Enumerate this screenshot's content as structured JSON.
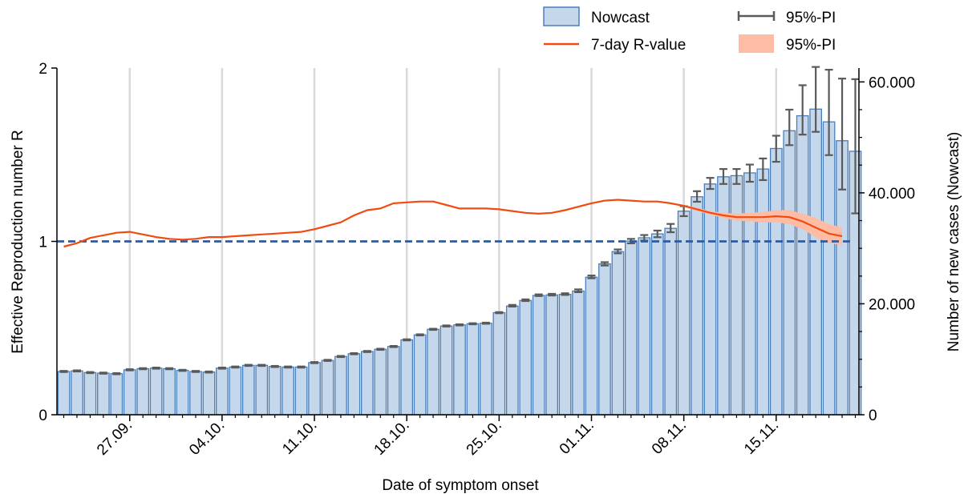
{
  "chart_data": {
    "type": "bar",
    "xlabel": "Date of symptom onset",
    "ylabel_left": "Effective Reproduction number R",
    "ylabel_right": "Number of new cases (Nowcast)",
    "ylim_left": [
      0,
      2
    ],
    "ylim_right": [
      0,
      62500
    ],
    "left_ticks": [
      "0",
      "1",
      "2"
    ],
    "left_tick_values": [
      0,
      1,
      2
    ],
    "right_ticks": [
      "0",
      "20.000",
      "40.000",
      "60.000"
    ],
    "right_tick_values": [
      0,
      20000,
      40000,
      60000
    ],
    "x_tick_labels": [
      "27.09.",
      "04.10.",
      "11.10.",
      "18.10.",
      "25.10.",
      "01.11.",
      "08.11.",
      "15.11."
    ],
    "x_tick_days": [
      5,
      12,
      19,
      26,
      33,
      40,
      47,
      54
    ],
    "days": [
      "22.09.",
      "23.09.",
      "24.09.",
      "25.09.",
      "26.09.",
      "27.09.",
      "28.09.",
      "29.09.",
      "30.09.",
      "01.10.",
      "02.10.",
      "03.10.",
      "04.10.",
      "05.10.",
      "06.10.",
      "07.10.",
      "08.10.",
      "09.10.",
      "10.10.",
      "11.10.",
      "12.10.",
      "13.10.",
      "14.10.",
      "15.10.",
      "16.10.",
      "17.10.",
      "18.10.",
      "19.10.",
      "20.10.",
      "21.10.",
      "22.10.",
      "23.10.",
      "24.10.",
      "25.10.",
      "26.10.",
      "27.10.",
      "28.10.",
      "29.10.",
      "30.10.",
      "31.10.",
      "01.11.",
      "02.11.",
      "03.11.",
      "04.11.",
      "05.11.",
      "06.11.",
      "07.11.",
      "08.11.",
      "09.11.",
      "10.11.",
      "11.11.",
      "12.11.",
      "13.11.",
      "14.11.",
      "15.11.",
      "16.11.",
      "17.11.",
      "18.11.",
      "19.11.",
      "20.11.",
      "21.11."
    ],
    "nowcast": [
      7800,
      7900,
      7600,
      7500,
      7400,
      8100,
      8300,
      8400,
      8300,
      8000,
      7800,
      7700,
      8400,
      8600,
      8900,
      8900,
      8700,
      8600,
      8600,
      9400,
      9800,
      10500,
      11000,
      11400,
      11800,
      12300,
      13500,
      14400,
      15400,
      16000,
      16200,
      16400,
      16500,
      18400,
      19600,
      20600,
      21500,
      21600,
      21700,
      22300,
      24800,
      27200,
      29400,
      31300,
      31900,
      32600,
      33600,
      36700,
      39300,
      41600,
      42900,
      43100,
      43600,
      44300,
      48000,
      51200,
      53900,
      55100,
      52800,
      49400,
      47500
    ],
    "nowcast_pi_low": [
      7700,
      7800,
      7500,
      7400,
      7300,
      8000,
      8200,
      8300,
      8200,
      7900,
      7700,
      7600,
      8300,
      8500,
      8800,
      8800,
      8600,
      8500,
      8500,
      9300,
      9700,
      10400,
      10900,
      11300,
      11700,
      12200,
      13400,
      14300,
      15300,
      15900,
      16100,
      16300,
      16400,
      18300,
      19500,
      20500,
      21400,
      21500,
      21600,
      22100,
      24600,
      26900,
      29100,
      30900,
      31400,
      32000,
      32900,
      35800,
      38400,
      40700,
      41600,
      41600,
      42000,
      42300,
      45600,
      48600,
      50500,
      51000,
      46800,
      40600,
      36300
    ],
    "nowcast_pi_high": [
      7900,
      8000,
      7700,
      7600,
      7500,
      8200,
      8400,
      8500,
      8400,
      8100,
      7900,
      7800,
      8500,
      8700,
      9000,
      9000,
      8800,
      8700,
      8700,
      9500,
      9900,
      10600,
      11100,
      11500,
      11900,
      12400,
      13600,
      14500,
      15500,
      16100,
      16300,
      16500,
      16600,
      18500,
      19800,
      20800,
      21700,
      21800,
      21900,
      22600,
      25100,
      27500,
      29800,
      31700,
      32400,
      33200,
      34400,
      37600,
      40300,
      42700,
      44300,
      44300,
      45100,
      46200,
      50300,
      55000,
      59400,
      62700,
      62200,
      60600,
      60500
    ],
    "r_value": [
      0.97,
      0.99,
      1.02,
      1.035,
      1.05,
      1.055,
      1.04,
      1.025,
      1.015,
      1.01,
      1.015,
      1.025,
      1.025,
      1.03,
      1.035,
      1.04,
      1.045,
      1.05,
      1.055,
      1.07,
      1.09,
      1.11,
      1.15,
      1.18,
      1.19,
      1.22,
      1.225,
      1.23,
      1.23,
      1.21,
      1.19,
      1.19,
      1.19,
      1.185,
      1.175,
      1.165,
      1.16,
      1.165,
      1.18,
      1.2,
      1.22,
      1.235,
      1.24,
      1.235,
      1.23,
      1.23,
      1.22,
      1.205,
      1.185,
      1.165,
      1.15,
      1.14,
      1.14,
      1.14,
      1.145,
      1.14,
      1.115,
      1.08,
      1.045,
      1.03
    ],
    "r_pi_low": [
      0.97,
      0.99,
      1.02,
      1.035,
      1.05,
      1.055,
      1.04,
      1.025,
      1.015,
      1.01,
      1.015,
      1.025,
      1.025,
      1.03,
      1.035,
      1.04,
      1.045,
      1.05,
      1.055,
      1.07,
      1.09,
      1.11,
      1.15,
      1.18,
      1.19,
      1.22,
      1.225,
      1.23,
      1.23,
      1.21,
      1.19,
      1.19,
      1.19,
      1.185,
      1.175,
      1.165,
      1.16,
      1.165,
      1.18,
      1.2,
      1.22,
      1.235,
      1.24,
      1.235,
      1.23,
      1.23,
      1.215,
      1.2,
      1.175,
      1.155,
      1.135,
      1.12,
      1.115,
      1.11,
      1.11,
      1.1,
      1.07,
      1.025,
      0.99,
      0.98
    ],
    "r_pi_high": [
      0.97,
      0.99,
      1.02,
      1.035,
      1.05,
      1.055,
      1.04,
      1.025,
      1.015,
      1.01,
      1.015,
      1.025,
      1.025,
      1.03,
      1.035,
      1.04,
      1.045,
      1.05,
      1.055,
      1.07,
      1.09,
      1.11,
      1.15,
      1.18,
      1.19,
      1.22,
      1.225,
      1.23,
      1.23,
      1.21,
      1.19,
      1.19,
      1.19,
      1.185,
      1.175,
      1.165,
      1.16,
      1.165,
      1.18,
      1.2,
      1.22,
      1.235,
      1.24,
      1.235,
      1.23,
      1.23,
      1.225,
      1.21,
      1.195,
      1.175,
      1.165,
      1.16,
      1.165,
      1.17,
      1.18,
      1.18,
      1.16,
      1.135,
      1.1,
      1.08
    ],
    "reference_line_r": 1,
    "legend": {
      "nowcast": "Nowcast",
      "r_value": "7-day R-value",
      "pi_errorbar": "95%-PI",
      "pi_band": "95%-PI",
      "placement": "top-right, outside plot"
    },
    "colors": {
      "bar_fill": "#c5d7ea",
      "bar_edge": "#4a7ebb",
      "r_line": "#f04b10",
      "r_band": "#fdbca3",
      "errorbar": "#5a5a5a",
      "reference_line": "#2e5aa0",
      "gridline": "#d9d9d9"
    },
    "grid": "vertical lines at x ticks"
  }
}
